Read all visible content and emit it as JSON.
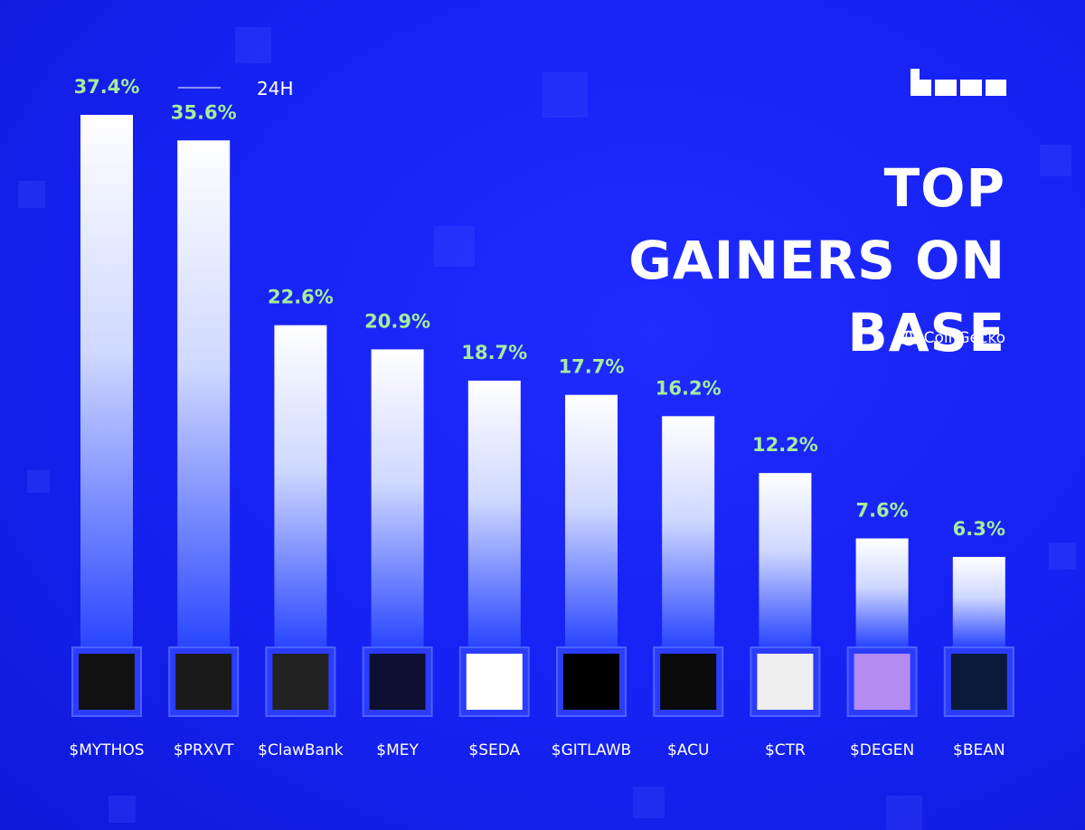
{
  "chart_data": {
    "type": "bar",
    "title": "TOP GAINERS ON BASE",
    "period": "24H",
    "source": "CoinGecko",
    "categories": [
      "$MYTHOS",
      "$PRXVT",
      "$ClawBank",
      "$MEY",
      "$SEDA",
      "$GITLAWB",
      "$ACU",
      "$CTR",
      "$DEGEN",
      "$BEAN"
    ],
    "values": [
      37.4,
      35.6,
      22.6,
      20.9,
      18.7,
      17.7,
      16.2,
      12.2,
      7.6,
      6.3
    ],
    "value_labels": [
      "37.4%",
      "35.6%",
      "22.6%",
      "20.9%",
      "18.7%",
      "17.7%",
      "16.2%",
      "12.2%",
      "7.6%",
      "6.3%"
    ],
    "color": "#ffffff",
    "label_color": "#a6ec9c"
  }
}
